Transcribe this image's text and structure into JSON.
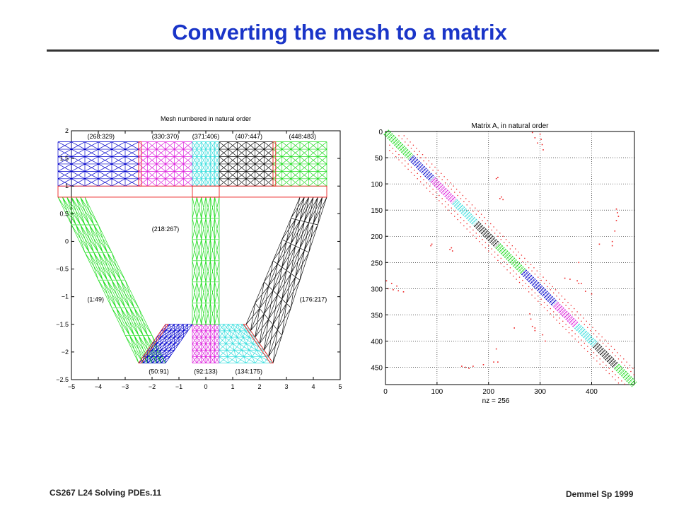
{
  "slide": {
    "title": "Converting the mesh to a matrix",
    "footer_left": "CS267  L24 Solving PDEs.11",
    "footer_right": "Demmel  Sp 1999"
  },
  "chart_data": [
    {
      "type": "mesh",
      "title": "Mesh numbered in natural order",
      "xlim": [
        -5,
        5
      ],
      "ylim": [
        -2.5,
        2
      ],
      "xticks": [
        -5,
        -4,
        -3,
        -2,
        -1,
        0,
        1,
        2,
        3,
        4,
        5
      ],
      "yticks": [
        2,
        1.5,
        1,
        0.5,
        0,
        -0.5,
        -1,
        -1.5,
        -2,
        -2.5
      ],
      "xtick_labels": [
        "−5",
        "−4",
        "−3",
        "−2",
        "−1",
        "0",
        "1",
        "2",
        "3",
        "4",
        "5"
      ],
      "ytick_labels": [
        "2",
        "1.5",
        "1",
        "0.5",
        "0",
        "−0.5",
        "−1",
        "−1.5",
        "−2",
        "−2.5"
      ],
      "regions": [
        {
          "label": "(1:49)",
          "color": "#22dd22",
          "corners": [
            [
              -5.5,
              0.8
            ],
            [
              -4.5,
              0.8
            ],
            [
              -1.5,
              -2.2
            ],
            [
              -2.5,
              -2.2
            ]
          ],
          "label_pos": [
            -4.1,
            -1.05
          ]
        },
        {
          "label": "(50:91)",
          "color": "#0000cc",
          "corners": [
            [
              -2.5,
              -2.2
            ],
            [
              -1.5,
              -2.2
            ],
            [
              -0.5,
              -1.5
            ],
            [
              -1.5,
              -1.5
            ]
          ],
          "label_pos": [
            -1.75,
            -2.35
          ]
        },
        {
          "label": "(92:133)",
          "color": "#dd22dd",
          "corners": [
            [
              -0.5,
              -2.2
            ],
            [
              0.5,
              -2.2
            ],
            [
              0.5,
              -1.5
            ],
            [
              -0.5,
              -1.5
            ]
          ],
          "label_pos": [
            0.0,
            -2.35
          ]
        },
        {
          "label": "(134:175)",
          "color": "#33dddd",
          "corners": [
            [
              0.5,
              -2.2
            ],
            [
              2.5,
              -2.2
            ],
            [
              1.5,
              -1.5
            ],
            [
              0.5,
              -1.5
            ]
          ],
          "label_pos": [
            1.6,
            -2.35
          ]
        },
        {
          "label": "(176:217)",
          "color": "#111111",
          "corners": [
            [
              4.5,
              0.8
            ],
            [
              3.5,
              0.8
            ],
            [
              1.5,
              -1.5
            ],
            [
              2.5,
              -2.2
            ]
          ],
          "label_pos": [
            4.0,
            -1.05
          ]
        },
        {
          "label": "(218:267)",
          "color": "#22dd22",
          "corners": [
            [
              -0.5,
              0.8
            ],
            [
              0.5,
              0.8
            ],
            [
              0.5,
              -1.5
            ],
            [
              -0.5,
              -1.5
            ]
          ],
          "label_pos": [
            -1.5,
            0.22
          ]
        },
        {
          "label": "(268:329)",
          "color": "#0000cc",
          "corners": [
            [
              -5.5,
              1.8
            ],
            [
              -2.5,
              1.8
            ],
            [
              -2.5,
              1.0
            ],
            [
              -5.5,
              1.0
            ]
          ],
          "label_pos": [
            -3.9,
            1.9
          ]
        },
        {
          "label": "(330:370)",
          "color": "#dd22dd",
          "corners": [
            [
              -2.5,
              1.8
            ],
            [
              -0.5,
              1.8
            ],
            [
              -0.5,
              1.0
            ],
            [
              -2.5,
              1.0
            ]
          ],
          "label_pos": [
            -1.5,
            1.9
          ]
        },
        {
          "label": "(371:406)",
          "color": "#33dddd",
          "corners": [
            [
              -0.5,
              1.8
            ],
            [
              0.5,
              1.8
            ],
            [
              0.5,
              1.0
            ],
            [
              -0.5,
              1.0
            ]
          ],
          "label_pos": [
            0.0,
            1.9
          ]
        },
        {
          "label": "(407:447)",
          "color": "#111111",
          "corners": [
            [
              0.5,
              1.8
            ],
            [
              2.5,
              1.8
            ],
            [
              2.5,
              1.0
            ],
            [
              0.5,
              1.0
            ]
          ],
          "label_pos": [
            1.6,
            1.9
          ]
        },
        {
          "label": "(448:483)",
          "color": "#22dd22",
          "corners": [
            [
              2.5,
              1.8
            ],
            [
              4.5,
              1.8
            ],
            [
              4.5,
              1.0
            ],
            [
              2.5,
              1.0
            ]
          ],
          "label_pos": [
            3.6,
            1.9
          ]
        }
      ],
      "interface_color": "#ee2222"
    },
    {
      "type": "spy",
      "title": "Matrix A, in natural order",
      "xlabel": "nz = 256",
      "xlim": [
        0,
        483
      ],
      "ylim": [
        0,
        483
      ],
      "xticks": [
        0,
        100,
        200,
        300,
        400
      ],
      "yticks": [
        0,
        50,
        100,
        150,
        200,
        250,
        300,
        350,
        400,
        450
      ],
      "xtick_labels": [
        "0",
        "100",
        "200",
        "300",
        "400"
      ],
      "ytick_labels": [
        "0",
        "50",
        "100",
        "150",
        "200",
        "250",
        "300",
        "350",
        "400",
        "450"
      ],
      "grid": true,
      "diagonal_blocks": [
        {
          "range": [
            1,
            49
          ],
          "color": "#22dd22"
        },
        {
          "range": [
            50,
            91
          ],
          "color": "#0000cc"
        },
        {
          "range": [
            92,
            133
          ],
          "color": "#dd22dd"
        },
        {
          "range": [
            134,
            175
          ],
          "color": "#33dddd"
        },
        {
          "range": [
            176,
            217
          ],
          "color": "#111111"
        },
        {
          "range": [
            218,
            267
          ],
          "color": "#22dd22"
        },
        {
          "range": [
            268,
            329
          ],
          "color": "#0000cc"
        },
        {
          "range": [
            330,
            370
          ],
          "color": "#dd22dd"
        },
        {
          "range": [
            371,
            406
          ],
          "color": "#33dddd"
        },
        {
          "range": [
            407,
            447
          ],
          "color": "#111111"
        },
        {
          "range": [
            448,
            483
          ],
          "color": "#22dd22"
        }
      ],
      "offdiag_bands": [
        {
          "start": 8,
          "end": 475,
          "offset": 18,
          "color": "#ee2222"
        },
        {
          "start": 8,
          "end": 475,
          "offset": 28,
          "color": "#ee2222"
        }
      ],
      "coupling_points": [
        {
          "row": 2,
          "col": 285
        },
        {
          "row": 12,
          "col": 290
        },
        {
          "row": 22,
          "col": 295
        },
        {
          "row": 88,
          "col": 218
        },
        {
          "row": 125,
          "col": 225
        },
        {
          "row": 130,
          "col": 228
        },
        {
          "row": 215,
          "col": 90
        },
        {
          "row": 222,
          "col": 128
        },
        {
          "row": 300,
          "col": 5
        },
        {
          "row": 302,
          "col": 15
        },
        {
          "row": 304,
          "col": 25
        },
        {
          "row": 306,
          "col": 35
        },
        {
          "row": 348,
          "col": 280
        },
        {
          "row": 358,
          "col": 282
        },
        {
          "row": 375,
          "col": 290
        },
        {
          "row": 250,
          "col": 375
        },
        {
          "row": 285,
          "col": 372
        },
        {
          "row": 290,
          "col": 380
        },
        {
          "row": 170,
          "col": 448
        },
        {
          "row": 190,
          "col": 445
        },
        {
          "row": 210,
          "col": 440
        },
        {
          "row": 215,
          "col": 415
        },
        {
          "row": 440,
          "col": 218
        },
        {
          "row": 448,
          "col": 148
        },
        {
          "row": 450,
          "col": 155
        },
        {
          "row": 452,
          "col": 162
        },
        {
          "row": 388,
          "col": 305
        },
        {
          "row": 400,
          "col": 310
        }
      ]
    }
  ]
}
